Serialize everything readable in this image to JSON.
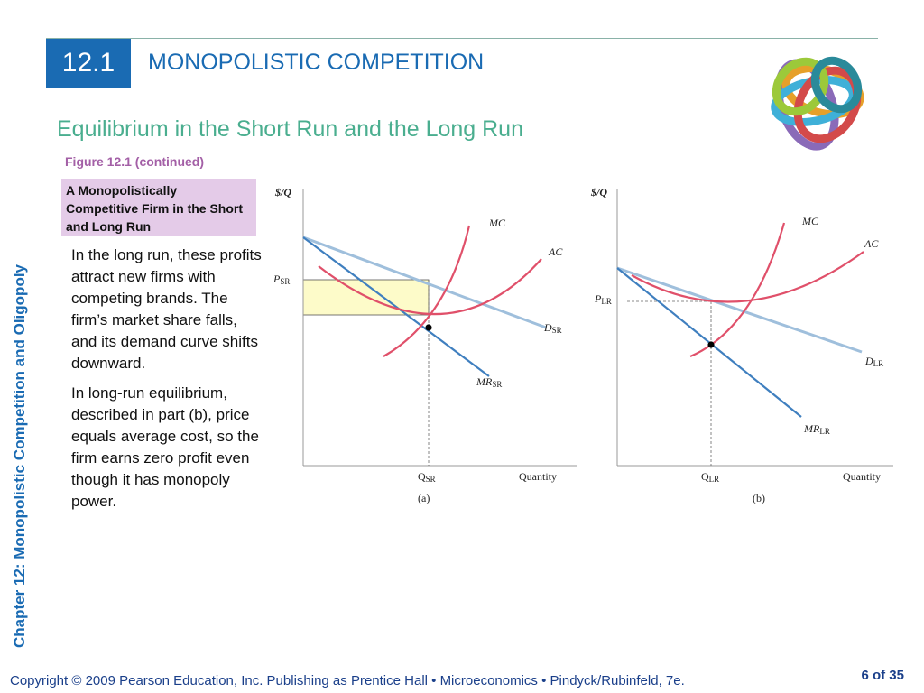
{
  "header": {
    "section_number": "12.1",
    "section_title": "MONOPOLISTIC COMPETITION",
    "subtitle": "Equilibrium in the Short Run and the Long Run",
    "figure_label": "Figure 12.1 (continued)"
  },
  "caption": {
    "title": "A Monopolistically Competitive Firm in the Short and Long Run"
  },
  "body": {
    "paragraph1": "In the long run, these profits attract new firms with competing brands. The firm’s market share falls, and its demand curve shifts downward.",
    "paragraph2": "In long-run equilibrium, described in part (b), price equals average cost, so the firm earns zero profit even though it has monopoly power."
  },
  "sidebar": {
    "chapter_label": "Chapter 12:  Monopolistic Competition and Oligopoly"
  },
  "chart_data": [
    {
      "type": "line",
      "panel": "(a)",
      "ylabel": "$/Q",
      "xlabel": "Quantity",
      "curves": {
        "mc": {
          "label": "MC"
        },
        "ac": {
          "label": "AC"
        },
        "demand": {
          "label": "D",
          "sub": "SR"
        },
        "mr": {
          "label": "MR",
          "sub": "SR"
        }
      },
      "price_label": {
        "main": "P",
        "sub": "SR"
      },
      "quantity_label": {
        "main": "Q",
        "sub": "SR"
      }
    },
    {
      "type": "line",
      "panel": "(b)",
      "ylabel": "$/Q",
      "xlabel": "Quantity",
      "curves": {
        "mc": {
          "label": "MC"
        },
        "ac": {
          "label": "AC"
        },
        "demand": {
          "label": "D",
          "sub": "LR"
        },
        "mr": {
          "label": "MR",
          "sub": "LR"
        }
      },
      "price_label": {
        "main": "P",
        "sub": "LR"
      },
      "quantity_label": {
        "main": "Q",
        "sub": "LR"
      }
    }
  ],
  "footer": {
    "copyright": "Copyright © 2009 Pearson Education, Inc. Publishing as Prentice Hall  •  Microeconomics  •  Pindyck/Rubinfeld, 7e.",
    "page": "6 of 35"
  },
  "colors": {
    "accent_blue": "#1a6bb3",
    "subtitle_green": "#4aae8f",
    "caption_purple": "#a35fa6",
    "caption_bg": "#e4cbe8",
    "mc_ac_curve": "#e0506a",
    "demand_curve": "#9fbfdc",
    "mr_curve": "#3f7fbf",
    "profit_fill": "#fdfbc9"
  }
}
